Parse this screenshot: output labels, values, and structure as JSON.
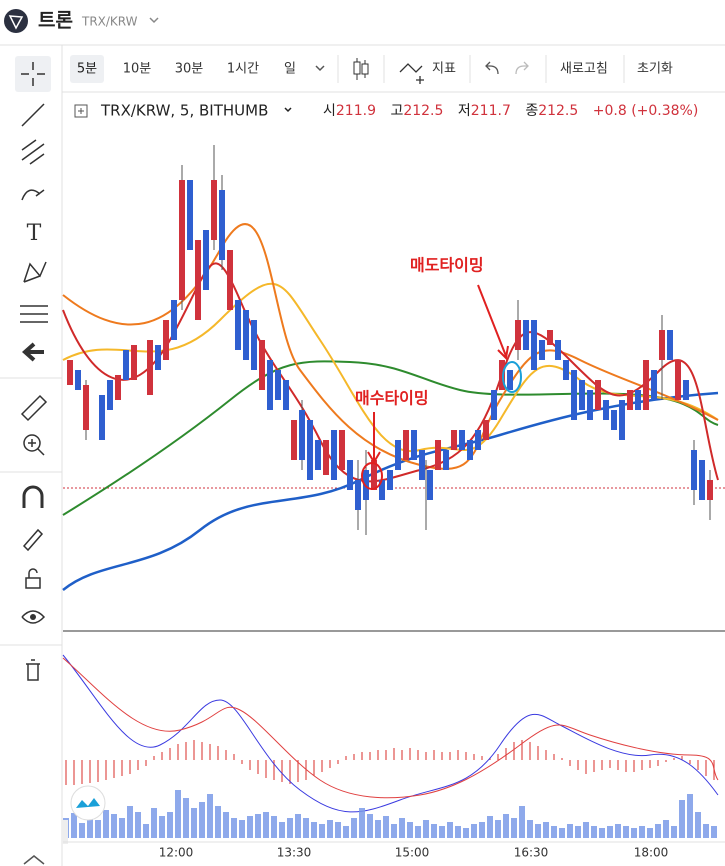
{
  "header": {
    "title": "트론",
    "pair": "TRX/KRW"
  },
  "toolbar": {
    "intervals": [
      "5분",
      "10분",
      "30분",
      "1시간",
      "일"
    ],
    "indicator": "지표",
    "refresh": "새로고침",
    "reset": "초기화"
  },
  "legend": {
    "symbol": "TRX/KRW, 5, BITHUMB",
    "open_label": "시",
    "open": 211.9,
    "high_label": "고",
    "high": 212.5,
    "low_label": "저",
    "low": 211.7,
    "close_label": "종",
    "close": 212.5,
    "change": "+0.8 (+0.38%)"
  },
  "annotations": {
    "sell": "매도타이밍",
    "buy": "매수타이밍"
  },
  "time_axis": [
    "12:00",
    "13:30",
    "15:00",
    "16:30",
    "18:00"
  ]
}
